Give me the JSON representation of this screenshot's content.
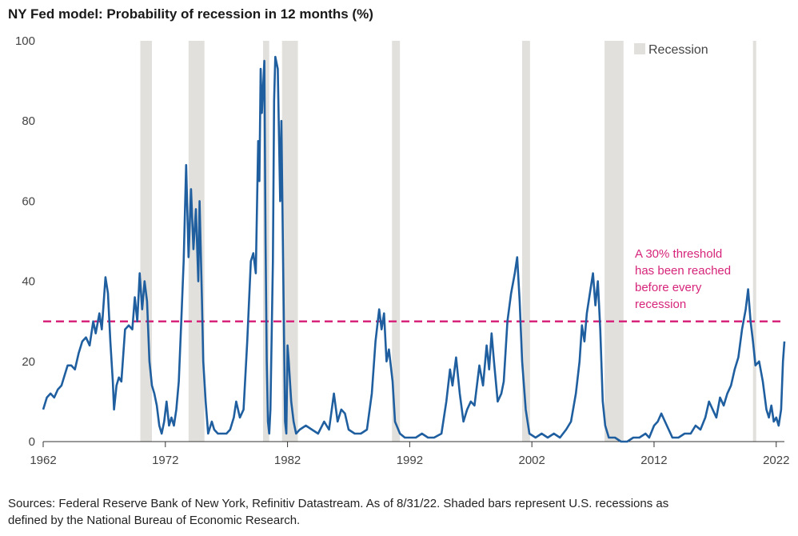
{
  "chart_data": {
    "type": "line",
    "title": "NY Fed model: Probability of recession in 12 months (%)",
    "xlabel": "",
    "ylabel": "",
    "xlim": [
      1962,
      2022.67
    ],
    "ylim": [
      0,
      100
    ],
    "x_ticks": [
      1962,
      1972,
      1982,
      1992,
      2002,
      2012,
      2022
    ],
    "y_ticks": [
      0,
      20,
      40,
      60,
      80,
      100
    ],
    "legend": {
      "label": "Recession",
      "position": "top-right",
      "color": "#e2e0dc"
    },
    "recessions": [
      [
        1969.95,
        1970.9
      ],
      [
        1973.9,
        1975.2
      ],
      [
        1980.0,
        1980.5
      ],
      [
        1981.55,
        1982.85
      ],
      [
        1990.55,
        1991.2
      ],
      [
        2001.2,
        2001.85
      ],
      [
        2007.95,
        2009.5
      ],
      [
        2020.1,
        2020.35
      ]
    ],
    "threshold": {
      "value": 30,
      "color": "#d6257a",
      "annotation": [
        "A 30% threshold",
        "has been reached",
        "before every",
        "recession"
      ]
    },
    "series": [
      {
        "color": "#1f5fa0",
        "points": [
          [
            1962.0,
            8
          ],
          [
            1962.3,
            11
          ],
          [
            1962.6,
            12
          ],
          [
            1962.9,
            11
          ],
          [
            1963.2,
            13
          ],
          [
            1963.5,
            14
          ],
          [
            1963.8,
            17
          ],
          [
            1964.0,
            19
          ],
          [
            1964.3,
            19
          ],
          [
            1964.6,
            18
          ],
          [
            1964.9,
            22
          ],
          [
            1965.2,
            25
          ],
          [
            1965.5,
            26
          ],
          [
            1965.8,
            24
          ],
          [
            1966.1,
            30
          ],
          [
            1966.3,
            27
          ],
          [
            1966.6,
            32
          ],
          [
            1966.8,
            28
          ],
          [
            1967.1,
            41
          ],
          [
            1967.3,
            37
          ],
          [
            1967.5,
            25
          ],
          [
            1967.7,
            15
          ],
          [
            1967.8,
            8
          ],
          [
            1968.0,
            14
          ],
          [
            1968.2,
            16
          ],
          [
            1968.4,
            15
          ],
          [
            1968.7,
            28
          ],
          [
            1969.0,
            29
          ],
          [
            1969.3,
            28
          ],
          [
            1969.5,
            36
          ],
          [
            1969.7,
            30
          ],
          [
            1969.9,
            42
          ],
          [
            1970.1,
            33
          ],
          [
            1970.3,
            40
          ],
          [
            1970.5,
            35
          ],
          [
            1970.7,
            20
          ],
          [
            1970.9,
            14
          ],
          [
            1971.1,
            12
          ],
          [
            1971.3,
            9
          ],
          [
            1971.5,
            4
          ],
          [
            1971.7,
            2
          ],
          [
            1971.9,
            5
          ],
          [
            1972.1,
            10
          ],
          [
            1972.3,
            4
          ],
          [
            1972.5,
            6
          ],
          [
            1972.7,
            4
          ],
          [
            1972.9,
            8
          ],
          [
            1973.1,
            15
          ],
          [
            1973.3,
            30
          ],
          [
            1973.5,
            45
          ],
          [
            1973.7,
            69
          ],
          [
            1973.9,
            46
          ],
          [
            1974.1,
            63
          ],
          [
            1974.3,
            48
          ],
          [
            1974.5,
            58
          ],
          [
            1974.7,
            40
          ],
          [
            1974.8,
            60
          ],
          [
            1975.0,
            35
          ],
          [
            1975.1,
            20
          ],
          [
            1975.3,
            10
          ],
          [
            1975.5,
            2
          ],
          [
            1975.8,
            5
          ],
          [
            1976.0,
            3
          ],
          [
            1976.3,
            2
          ],
          [
            1976.7,
            2
          ],
          [
            1977.0,
            2
          ],
          [
            1977.3,
            3
          ],
          [
            1977.6,
            6
          ],
          [
            1977.8,
            10
          ],
          [
            1978.1,
            6
          ],
          [
            1978.4,
            8
          ],
          [
            1978.7,
            25
          ],
          [
            1979.0,
            45
          ],
          [
            1979.2,
            47
          ],
          [
            1979.4,
            42
          ],
          [
            1979.6,
            75
          ],
          [
            1979.7,
            65
          ],
          [
            1979.8,
            93
          ],
          [
            1979.9,
            82
          ],
          [
            1980.1,
            95
          ],
          [
            1980.2,
            50
          ],
          [
            1980.3,
            20
          ],
          [
            1980.4,
            5
          ],
          [
            1980.5,
            2
          ],
          [
            1980.6,
            8
          ],
          [
            1980.8,
            45
          ],
          [
            1980.9,
            85
          ],
          [
            1981.0,
            96
          ],
          [
            1981.2,
            93
          ],
          [
            1981.4,
            60
          ],
          [
            1981.5,
            80
          ],
          [
            1981.7,
            30
          ],
          [
            1981.8,
            5
          ],
          [
            1981.9,
            2
          ],
          [
            1982.0,
            24
          ],
          [
            1982.1,
            20
          ],
          [
            1982.3,
            10
          ],
          [
            1982.5,
            5
          ],
          [
            1982.7,
            2
          ],
          [
            1983.0,
            3
          ],
          [
            1983.5,
            4
          ],
          [
            1984.0,
            3
          ],
          [
            1984.5,
            2
          ],
          [
            1985.0,
            5
          ],
          [
            1985.4,
            3
          ],
          [
            1985.8,
            12
          ],
          [
            1986.1,
            5
          ],
          [
            1986.4,
            8
          ],
          [
            1986.7,
            7
          ],
          [
            1987.0,
            3
          ],
          [
            1987.5,
            2
          ],
          [
            1988.0,
            2
          ],
          [
            1988.5,
            3
          ],
          [
            1988.9,
            12
          ],
          [
            1989.2,
            25
          ],
          [
            1989.5,
            33
          ],
          [
            1989.7,
            28
          ],
          [
            1989.9,
            32
          ],
          [
            1990.1,
            20
          ],
          [
            1990.3,
            23
          ],
          [
            1990.6,
            15
          ],
          [
            1990.8,
            5
          ],
          [
            1991.2,
            2
          ],
          [
            1991.6,
            1
          ],
          [
            1992.0,
            1
          ],
          [
            1992.5,
            1
          ],
          [
            1993.0,
            2
          ],
          [
            1993.5,
            1
          ],
          [
            1994.0,
            1
          ],
          [
            1994.6,
            2
          ],
          [
            1995.0,
            10
          ],
          [
            1995.3,
            18
          ],
          [
            1995.5,
            14
          ],
          [
            1995.8,
            21
          ],
          [
            1996.1,
            12
          ],
          [
            1996.4,
            5
          ],
          [
            1996.7,
            8
          ],
          [
            1997.0,
            10
          ],
          [
            1997.3,
            9
          ],
          [
            1997.7,
            19
          ],
          [
            1998.0,
            14
          ],
          [
            1998.3,
            24
          ],
          [
            1998.5,
            18
          ],
          [
            1998.7,
            27
          ],
          [
            1998.9,
            20
          ],
          [
            1999.2,
            10
          ],
          [
            1999.5,
            12
          ],
          [
            1999.7,
            15
          ],
          [
            2000.0,
            30
          ],
          [
            2000.3,
            37
          ],
          [
            2000.6,
            42
          ],
          [
            2000.8,
            46
          ],
          [
            2001.0,
            35
          ],
          [
            2001.2,
            20
          ],
          [
            2001.5,
            8
          ],
          [
            2001.8,
            2
          ],
          [
            2002.3,
            1
          ],
          [
            2002.8,
            2
          ],
          [
            2003.3,
            1
          ],
          [
            2003.8,
            2
          ],
          [
            2004.3,
            1
          ],
          [
            2004.8,
            3
          ],
          [
            2005.2,
            5
          ],
          [
            2005.6,
            12
          ],
          [
            2005.9,
            20
          ],
          [
            2006.1,
            29
          ],
          [
            2006.3,
            25
          ],
          [
            2006.5,
            32
          ],
          [
            2006.8,
            38
          ],
          [
            2007.0,
            42
          ],
          [
            2007.2,
            34
          ],
          [
            2007.4,
            40
          ],
          [
            2007.6,
            28
          ],
          [
            2007.8,
            10
          ],
          [
            2008.0,
            4
          ],
          [
            2008.3,
            1
          ],
          [
            2008.8,
            1
          ],
          [
            2009.3,
            0
          ],
          [
            2009.8,
            0
          ],
          [
            2010.3,
            1
          ],
          [
            2010.8,
            1
          ],
          [
            2011.3,
            2
          ],
          [
            2011.6,
            1
          ],
          [
            2012.0,
            4
          ],
          [
            2012.3,
            5
          ],
          [
            2012.6,
            7
          ],
          [
            2012.9,
            5
          ],
          [
            2013.2,
            3
          ],
          [
            2013.5,
            1
          ],
          [
            2014.0,
            1
          ],
          [
            2014.5,
            2
          ],
          [
            2015.0,
            2
          ],
          [
            2015.4,
            4
          ],
          [
            2015.8,
            3
          ],
          [
            2016.2,
            6
          ],
          [
            2016.5,
            10
          ],
          [
            2016.8,
            8
          ],
          [
            2017.1,
            6
          ],
          [
            2017.4,
            11
          ],
          [
            2017.7,
            9
          ],
          [
            2018.0,
            12
          ],
          [
            2018.3,
            14
          ],
          [
            2018.6,
            18
          ],
          [
            2018.9,
            21
          ],
          [
            2019.2,
            28
          ],
          [
            2019.5,
            33
          ],
          [
            2019.7,
            38
          ],
          [
            2019.9,
            30
          ],
          [
            2020.1,
            25
          ],
          [
            2020.3,
            19
          ],
          [
            2020.6,
            20
          ],
          [
            2020.9,
            15
          ],
          [
            2021.2,
            8
          ],
          [
            2021.4,
            6
          ],
          [
            2021.6,
            9
          ],
          [
            2021.8,
            5
          ],
          [
            2022.0,
            6
          ],
          [
            2022.2,
            4
          ],
          [
            2022.4,
            8
          ],
          [
            2022.55,
            20
          ],
          [
            2022.67,
            25
          ]
        ]
      }
    ]
  },
  "footer": {
    "source_line1": "Sources: Federal Reserve Bank of New York, Refinitiv Datastream. As of 8/31/22. Shaded bars represent U.S. recessions as",
    "source_line2": "defined by the National Bureau of Economic Research."
  }
}
